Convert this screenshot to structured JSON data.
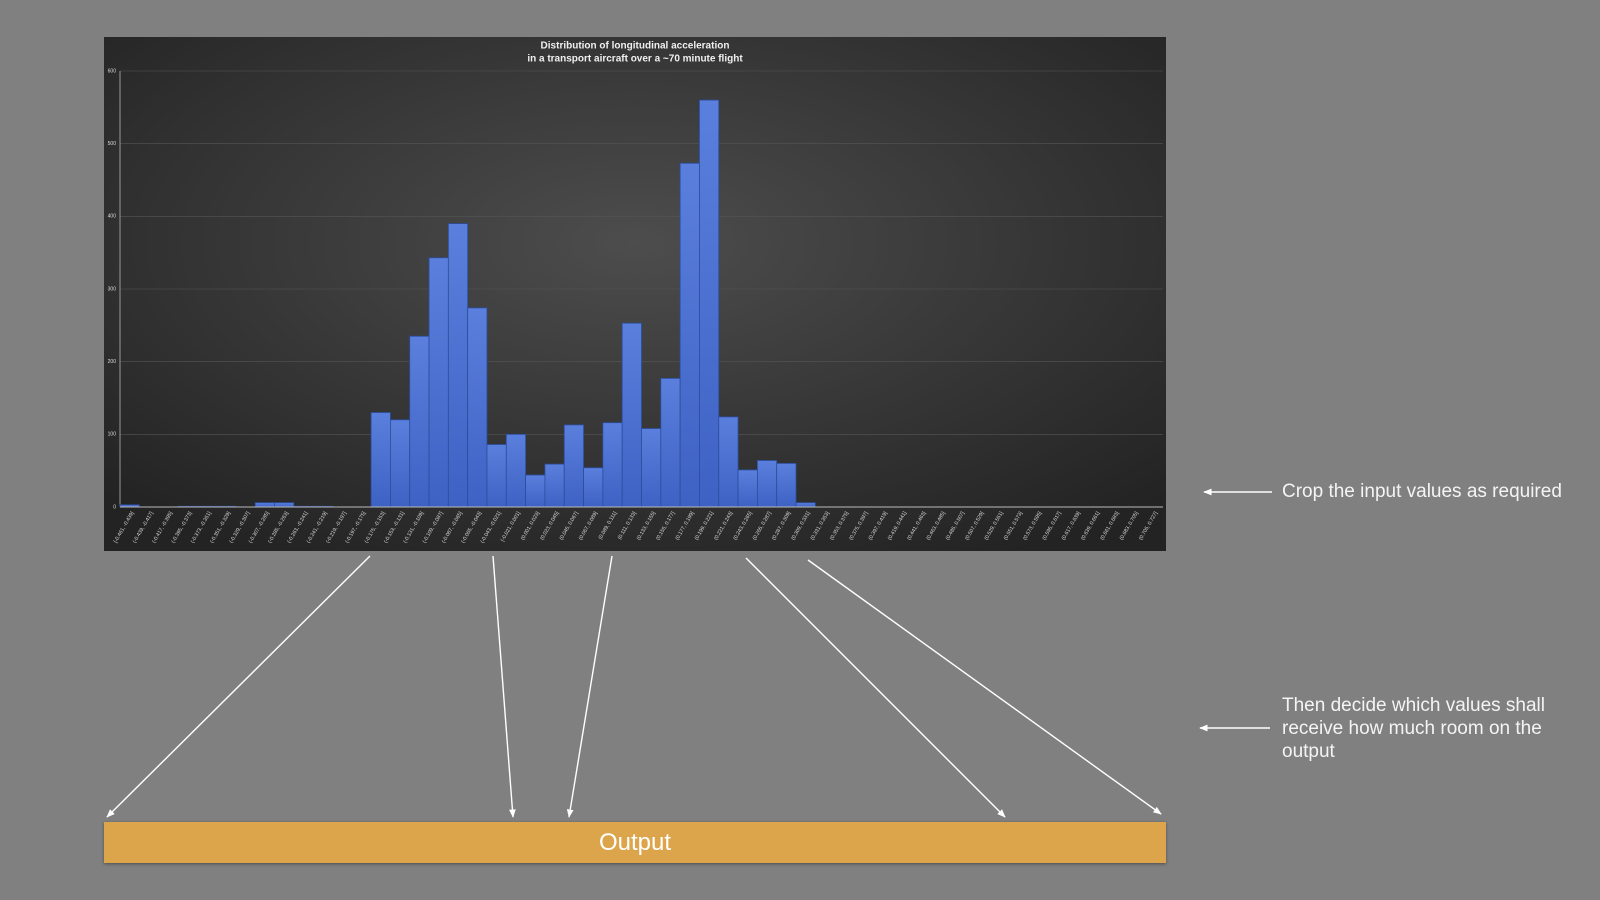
{
  "chart_data": {
    "type": "bar",
    "title": "Distribution of longitudinal acceleration",
    "subtitle": "in a transport aircraft over a ~70 minute flight",
    "categories": [
      "[-0.461, -0.439]",
      "(-0.439, -0.417]",
      "(-0.417, -0.395]",
      "(-0.395, -0.373]",
      "(-0.373, -0.351]",
      "(-0.351, -0.329]",
      "(-0.329, -0.307]",
      "(-0.307, -0.285]",
      "(-0.285, -0.263]",
      "(-0.263, -0.241]",
      "(-0.241, -0.219]",
      "(-0.219, -0.197]",
      "(-0.197, -0.175]",
      "(-0.175, -0.153]",
      "(-0.153, -0.131]",
      "(-0.131, -0.109]",
      "(-0.109, -0.087]",
      "(-0.087, -0.065]",
      "(-0.065, -0.043]",
      "(-0.043, -0.021]",
      "(-0.021, 0.001]",
      "(0.001, 0.023]",
      "(0.023, 0.045]",
      "(0.045, 0.067]",
      "(0.067, 0.089]",
      "(0.089, 0.111]",
      "(0.111, 0.133]",
      "(0.133, 0.155]",
      "(0.155, 0.177]",
      "(0.177, 0.199]",
      "(0.199, 0.221]",
      "(0.221, 0.243]",
      "(0.243, 0.265]",
      "(0.265, 0.287]",
      "(0.287, 0.309]",
      "(0.309, 0.331]",
      "(0.331, 0.353]",
      "(0.353, 0.375]",
      "(0.375, 0.397]",
      "(0.397, 0.419]",
      "(0.419, 0.441]",
      "(0.441, 0.463]",
      "(0.463, 0.485]",
      "(0.485, 0.507]",
      "(0.507, 0.529]",
      "(0.529, 0.551]",
      "(0.551, 0.573]",
      "(0.573, 0.595]",
      "(0.595, 0.617]",
      "(0.617, 0.639]",
      "(0.639, 0.661]",
      "(0.661, 0.683]",
      "(0.683, 0.705]",
      "(0.705, 0.727]"
    ],
    "values": [
      3,
      0,
      0,
      1,
      1,
      1,
      0,
      6,
      6,
      1,
      1,
      0,
      0,
      130,
      120,
      235,
      343,
      390,
      274,
      86,
      100,
      44,
      59,
      113,
      54,
      116,
      253,
      108,
      177,
      473,
      560,
      124,
      51,
      64,
      60,
      6,
      0,
      0,
      0,
      0,
      0,
      0,
      0,
      0,
      0,
      0,
      0,
      0,
      0,
      0,
      0,
      0,
      0,
      0
    ],
    "color": "#4a6fd3",
    "ylim": [
      0,
      600
    ],
    "yticks": [
      0,
      100,
      200,
      300,
      400,
      500,
      600
    ],
    "grid": true
  },
  "slide": {
    "annotations": [
      "Crop the input values as required",
      "Then decide which values shall receive how much room on the output"
    ],
    "output_label": "Output"
  }
}
